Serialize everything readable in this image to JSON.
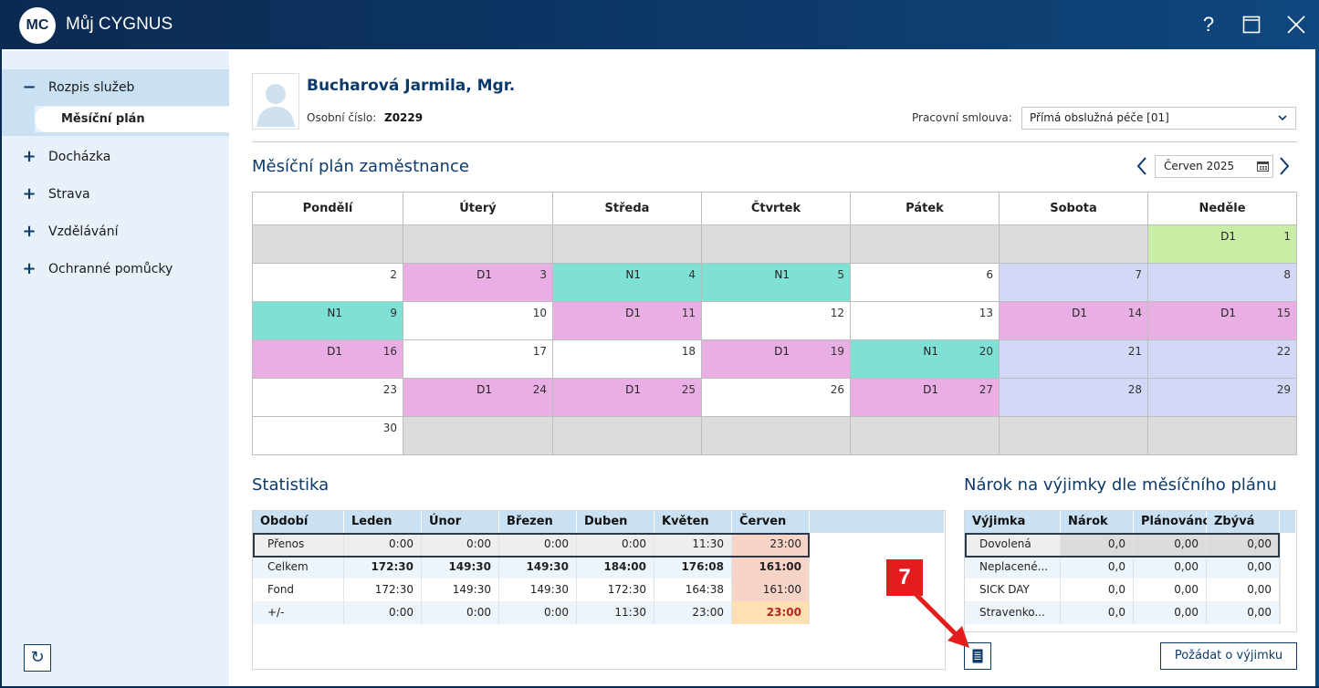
{
  "window": {
    "logo_text": "MC",
    "title": "Můj CYGNUS",
    "help_label": "?"
  },
  "sidebar": {
    "items": [
      {
        "sign": "−",
        "label": "Rozpis služeb"
      },
      {
        "sign": "+",
        "label": "Docházka"
      },
      {
        "sign": "+",
        "label": "Strava"
      },
      {
        "sign": "+",
        "label": "Vzdělávání"
      },
      {
        "sign": "+",
        "label": "Ochranné pomůcky"
      }
    ],
    "sub_item": "Měsíční plán",
    "refresh_icon": "↻"
  },
  "employee": {
    "name": "Bucharová Jarmila, Mgr.",
    "num_label": "Osobní číslo:",
    "num": "Z0229",
    "contract_label": "Pracovní smlouva:",
    "contract_value": "Přímá obslužná péče [01]"
  },
  "plan": {
    "title": "Měsíční plán zaměstnance",
    "month": "Červen 2025",
    "days": [
      "Pondělí",
      "Úterý",
      "Středa",
      "Čtvrtek",
      "Pátek",
      "Sobota",
      "Neděle"
    ],
    "weeks": [
      [
        {
          "t": "empty"
        },
        {
          "t": "empty"
        },
        {
          "t": "empty"
        },
        {
          "t": "empty"
        },
        {
          "t": "empty"
        },
        {
          "t": "empty"
        },
        {
          "t": "sun1",
          "day": "1",
          "shift": "D1"
        }
      ],
      [
        {
          "t": "white",
          "day": "2"
        },
        {
          "t": "d",
          "day": "3",
          "shift": "D1"
        },
        {
          "t": "n",
          "day": "4",
          "shift": "N1"
        },
        {
          "t": "n",
          "day": "5",
          "shift": "N1"
        },
        {
          "t": "white",
          "day": "6"
        },
        {
          "t": "we",
          "day": "7"
        },
        {
          "t": "we",
          "day": "8"
        }
      ],
      [
        {
          "t": "n",
          "day": "9",
          "shift": "N1"
        },
        {
          "t": "white",
          "day": "10"
        },
        {
          "t": "d",
          "day": "11",
          "shift": "D1"
        },
        {
          "t": "white",
          "day": "12"
        },
        {
          "t": "white",
          "day": "13"
        },
        {
          "t": "d",
          "day": "14",
          "shift": "D1"
        },
        {
          "t": "d",
          "day": "15",
          "shift": "D1"
        }
      ],
      [
        {
          "t": "d",
          "day": "16",
          "shift": "D1"
        },
        {
          "t": "white",
          "day": "17"
        },
        {
          "t": "white",
          "day": "18"
        },
        {
          "t": "d",
          "day": "19",
          "shift": "D1"
        },
        {
          "t": "n",
          "day": "20",
          "shift": "N1"
        },
        {
          "t": "we",
          "day": "21"
        },
        {
          "t": "we",
          "day": "22"
        }
      ],
      [
        {
          "t": "white",
          "day": "23"
        },
        {
          "t": "d",
          "day": "24",
          "shift": "D1"
        },
        {
          "t": "d",
          "day": "25",
          "shift": "D1"
        },
        {
          "t": "white",
          "day": "26"
        },
        {
          "t": "d",
          "day": "27",
          "shift": "D1"
        },
        {
          "t": "we",
          "day": "28"
        },
        {
          "t": "we",
          "day": "29"
        }
      ],
      [
        {
          "t": "white",
          "day": "30"
        },
        {
          "t": "empty"
        },
        {
          "t": "empty"
        },
        {
          "t": "empty"
        },
        {
          "t": "empty"
        },
        {
          "t": "empty"
        },
        {
          "t": "empty"
        }
      ]
    ]
  },
  "statistika": {
    "title": "Statistika",
    "headers": [
      "Období",
      "Leden",
      "Únor",
      "Březen",
      "Duben",
      "Květen",
      "Červen"
    ],
    "rows": [
      {
        "label": "Přenos",
        "values": [
          "0:00",
          "0:00",
          "0:00",
          "0:00",
          "11:30",
          "23:00"
        ],
        "bold": false
      },
      {
        "label": "Celkem",
        "values": [
          "172:30",
          "149:30",
          "149:30",
          "184:00",
          "176:08",
          "161:00"
        ],
        "bold": true
      },
      {
        "label": "Fond",
        "values": [
          "172:30",
          "149:30",
          "149:30",
          "172:30",
          "164:38",
          "161:00"
        ],
        "bold": false
      },
      {
        "label": "+/-",
        "values": [
          "0:00",
          "0:00",
          "0:00",
          "11:30",
          "23:00",
          "23:00"
        ],
        "bold": false
      }
    ]
  },
  "narok": {
    "title": "Nárok na výjimky dle měsíčního plánu",
    "headers": [
      "Výjimka",
      "Nárok",
      "Plánováno",
      "Zbývá"
    ],
    "rows": [
      {
        "label": "Dovolená",
        "values": [
          "0,0",
          "0,00",
          "0,00"
        ]
      },
      {
        "label": "Neplacené...",
        "values": [
          "0,0",
          "0,00",
          "0,00"
        ]
      },
      {
        "label": "SICK DAY",
        "values": [
          "0,0",
          "0,00",
          "0,00"
        ]
      },
      {
        "label": "Stravenko...",
        "values": [
          "0,0",
          "0,00",
          "0,00"
        ]
      }
    ],
    "request_button": "Požádat o výjimku"
  },
  "annotation": {
    "marker": "7",
    "color": "#e31d1d"
  },
  "colors": {
    "brand": "#0b2a52",
    "accent": "#0b3a6b",
    "day_shift": "#e9aee4",
    "night_shift": "#7fe0d4",
    "weekend": "#d3d8f6"
  }
}
